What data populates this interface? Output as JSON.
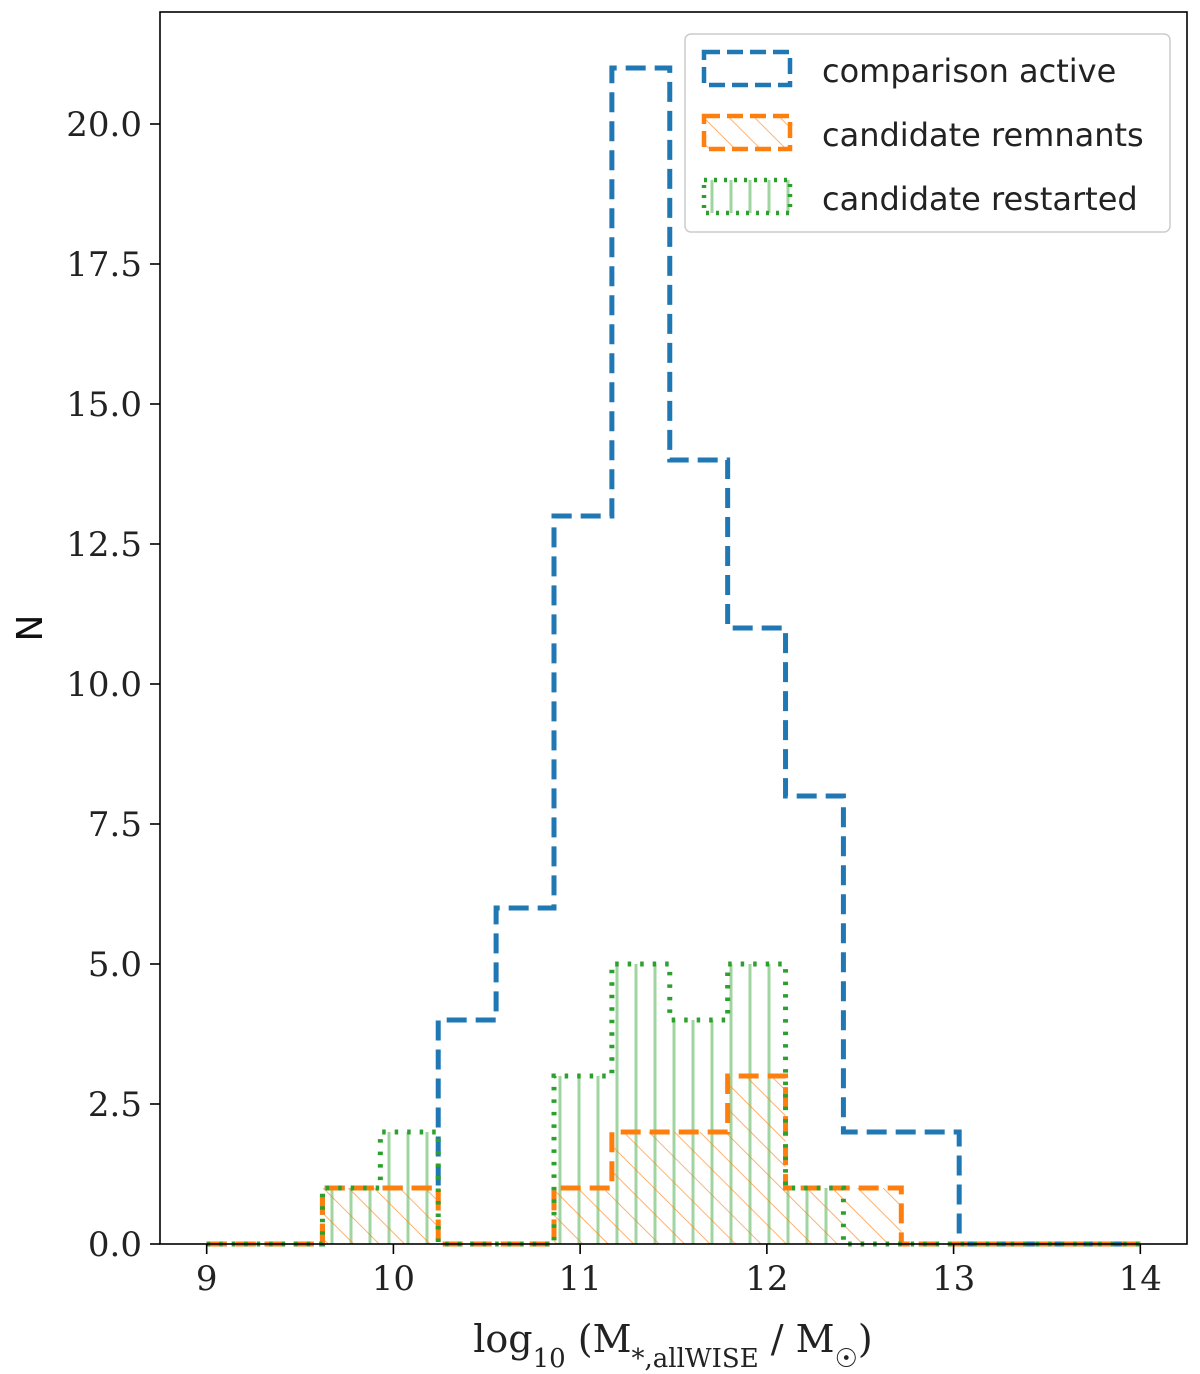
{
  "chart_data": {
    "type": "histogram",
    "xlabel": "log10 (M*,allWISE / M☉)",
    "ylabel": "N",
    "xlim": [
      8.75,
      14.25
    ],
    "ylim": [
      0,
      22
    ],
    "xticks": [
      "9",
      "10",
      "11",
      "12",
      "13",
      "14"
    ],
    "yticks": [
      "0.0",
      "2.5",
      "5.0",
      "7.5",
      "10.0",
      "12.5",
      "15.0",
      "17.5",
      "20.0"
    ],
    "bin_edges": [
      9.0,
      9.31,
      9.62,
      9.93,
      10.24,
      10.55,
      10.86,
      11.17,
      11.48,
      11.79,
      12.1,
      12.41,
      12.72,
      13.03,
      13.34,
      13.65,
      14.0
    ],
    "legend_position": "upper right",
    "grid": false,
    "series": [
      {
        "name": "comparison active",
        "color": "#1f77b4",
        "style": "dashed",
        "values": [
          0,
          0,
          1,
          1,
          4,
          6,
          13,
          21,
          14,
          11,
          8,
          2,
          2,
          0,
          0,
          0
        ]
      },
      {
        "name": "candidate remnants",
        "color": "#ff7f0e",
        "style": "dashed-hatched-diagonal",
        "values": [
          0,
          0,
          1,
          1,
          0,
          0,
          1,
          2,
          2,
          3,
          1,
          1,
          0,
          0,
          0,
          0
        ]
      },
      {
        "name": "candidate restarted",
        "color": "#2ca02c",
        "style": "dotted-hatched-vertical",
        "values": [
          0,
          0,
          1,
          2,
          0,
          0,
          3,
          5,
          4,
          5,
          1,
          0,
          0,
          0,
          0,
          0
        ]
      }
    ]
  }
}
